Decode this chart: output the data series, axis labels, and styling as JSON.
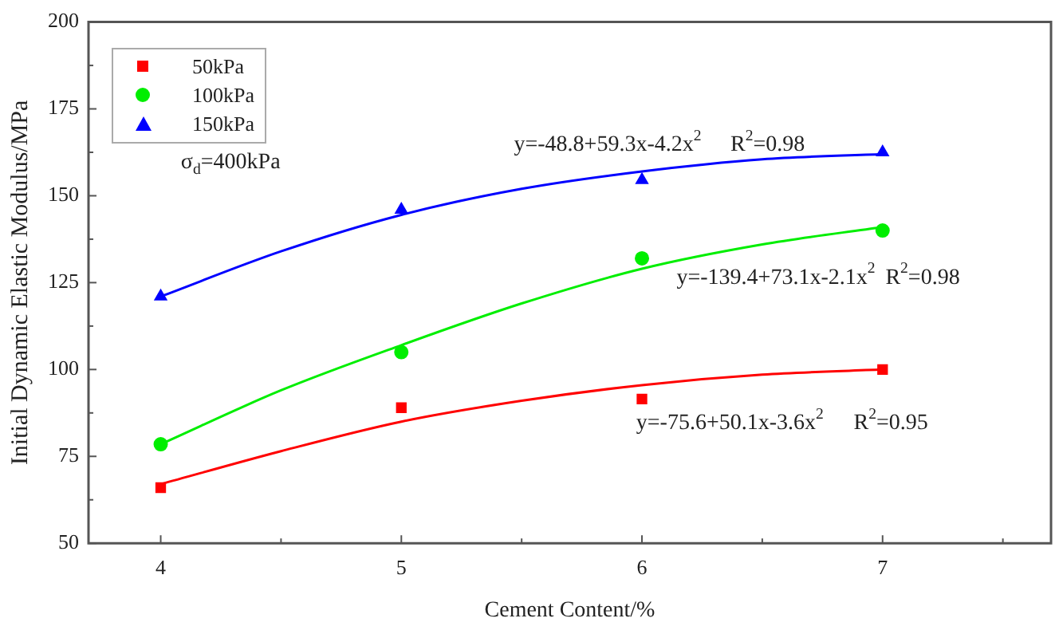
{
  "chart_data": {
    "type": "scatter",
    "xlabel": "Cement Content/%",
    "ylabel": "Initial Dynamic Elastic Modulus/MPa",
    "xlim": [
      3.7,
      7.7
    ],
    "xticks": [
      4,
      5,
      6,
      7
    ],
    "ylim": [
      50,
      200
    ],
    "yticks": [
      50,
      75,
      100,
      125,
      150,
      175,
      200
    ],
    "grid": false,
    "legend": "top left",
    "series": [
      {
        "name": "50kPa",
        "color": "#ff0000",
        "marker": "square",
        "x": [
          4,
          5,
          6,
          7
        ],
        "values": [
          66,
          89,
          91.5,
          100
        ]
      },
      {
        "name": "100kPa",
        "color": "#00ee00",
        "marker": "circle",
        "x": [
          4,
          5,
          6,
          7
        ],
        "values": [
          78.5,
          105,
          132,
          140
        ]
      },
      {
        "name": "150kPa",
        "color": "#0000ff",
        "marker": "triangle",
        "x": [
          4,
          5,
          6,
          7
        ],
        "values": [
          121,
          146,
          154.5,
          162.5
        ]
      },
      {
        "type": "line",
        "color": "#ff0000",
        "marker": "none",
        "x": [
          4,
          4.5,
          5,
          5.5,
          6,
          6.5,
          7
        ],
        "values": [
          67,
          76.5,
          85,
          91,
          95.5,
          98.5,
          100
        ]
      },
      {
        "type": "line",
        "color": "#00ee00",
        "marker": "none",
        "x": [
          4,
          4.5,
          5,
          5.5,
          6,
          6.5,
          7
        ],
        "values": [
          78.5,
          94,
          107,
          119,
          129,
          136,
          141
        ]
      },
      {
        "type": "line",
        "color": "#0000ff",
        "marker": "none",
        "x": [
          4,
          4.5,
          5,
          5.5,
          6,
          6.5,
          7
        ],
        "values": [
          121,
          134,
          144.5,
          152,
          157,
          160.5,
          162
        ]
      }
    ],
    "annotations": [
      "σ$_{d}$=400kPa",
      "y=-48.8+59.3x-4.2x$^{2}$",
      "R$^{2}$=0.98",
      "y=-139.4+73.1x-2.1x$^{2}$",
      "R$^{2}$=0.98",
      "y=-75.6+50.1x-3.6x$^{2}$",
      "R$^{2}$=0.95"
    ]
  }
}
